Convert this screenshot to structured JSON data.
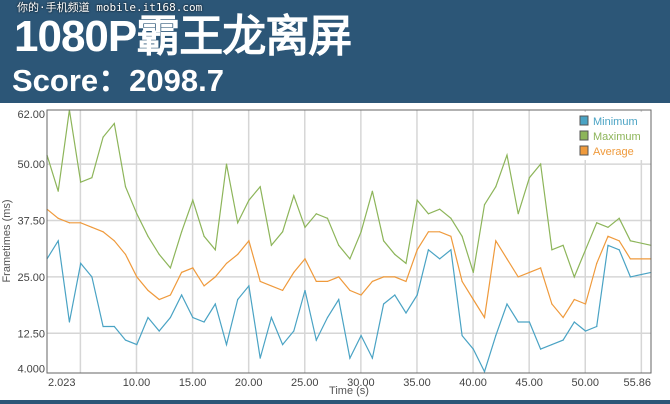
{
  "header": {
    "watermark": "你的·手机频道 mobile.it168.com",
    "title": "1080P霸王龙离屏",
    "score": "Score：2098.7"
  },
  "colors": {
    "header_bg": "#2c5677",
    "minimum": "#4aa3c4",
    "maximum": "#8db55a",
    "average": "#ef9a3c"
  },
  "chart_data": {
    "type": "line",
    "xlabel": "Time (s)",
    "ylabel": "Frametimes (ms)",
    "xlim": [
      2.023,
      55.86
    ],
    "ylim": [
      3.7,
      62
    ],
    "x_tick_labels": [
      "2.023",
      "10.00",
      "15.00",
      "20.00",
      "25.00",
      "30.00",
      "35.00",
      "40.00",
      "45.00",
      "50.00",
      "55.86"
    ],
    "x_tick_values": [
      2.023,
      10,
      15,
      20,
      25,
      30,
      35,
      40,
      45,
      50,
      55.86
    ],
    "x_grid": [
      5,
      10,
      15,
      20,
      25,
      30,
      35,
      40,
      45,
      50,
      55
    ],
    "y_tick_labels": [
      "4.000",
      "12.50",
      "25.00",
      "37.50",
      "50.00",
      "62.00"
    ],
    "y_tick_values": [
      4,
      12.5,
      25,
      37.5,
      50,
      62
    ],
    "y_grid": [
      12.5,
      25,
      37.5,
      50
    ],
    "grid": true,
    "legend_position": "top-right",
    "x": [
      2.023,
      3.023,
      4.023,
      5.023,
      6.023,
      7.023,
      8.023,
      9.023,
      10.023,
      11.023,
      12.023,
      13.023,
      14.023,
      15.023,
      16.023,
      17.023,
      18.023,
      19.023,
      20.023,
      21.023,
      22.023,
      23.023,
      24.023,
      25.023,
      26.023,
      27.023,
      28.023,
      29.023,
      30.023,
      31.023,
      32.023,
      33.023,
      34.023,
      35.023,
      36.023,
      37.023,
      38.023,
      39.023,
      40.023,
      41.023,
      42.023,
      43.023,
      44.023,
      45.023,
      46.023,
      47.023,
      48.023,
      49.023,
      50.023,
      51.023,
      52.023,
      53.023,
      54.023,
      55.86
    ],
    "series": [
      {
        "name": "Minimum",
        "values": [
          29,
          33,
          15,
          28,
          25,
          14,
          14,
          11,
          10,
          16,
          13,
          16,
          21,
          16,
          15,
          19,
          10,
          20,
          23,
          7,
          16,
          10,
          13,
          22,
          11,
          16,
          20,
          7,
          12,
          7,
          19,
          21,
          17,
          21,
          31,
          29,
          31,
          12,
          9,
          4,
          12,
          19,
          15,
          15,
          9,
          10,
          11,
          15,
          13,
          14,
          32,
          31,
          25,
          26
        ]
      },
      {
        "name": "Maximum",
        "values": [
          52,
          44,
          62,
          46,
          47,
          56,
          59,
          45,
          39,
          34,
          30,
          27,
          35,
          42,
          34,
          31,
          50,
          37,
          42,
          45,
          32,
          35,
          43,
          36,
          39,
          38,
          32,
          29,
          35,
          44,
          33,
          30,
          28,
          42,
          39,
          40,
          38,
          34,
          26,
          41,
          45,
          52,
          39,
          47,
          50,
          31,
          32,
          25,
          31,
          37,
          36,
          38,
          33,
          32
        ]
      },
      {
        "name": "Average",
        "values": [
          40,
          38,
          37,
          37,
          36,
          35,
          33,
          30,
          25,
          22,
          20,
          21,
          26,
          27,
          23,
          25,
          28,
          30,
          33,
          24,
          23,
          22,
          26,
          29,
          24,
          24,
          25,
          22,
          21,
          24,
          25,
          25,
          24,
          31,
          35,
          35,
          34,
          24,
          20,
          16,
          33,
          29,
          25,
          26,
          27,
          19,
          16,
          20,
          19,
          28,
          34,
          33,
          29,
          29
        ]
      }
    ]
  }
}
